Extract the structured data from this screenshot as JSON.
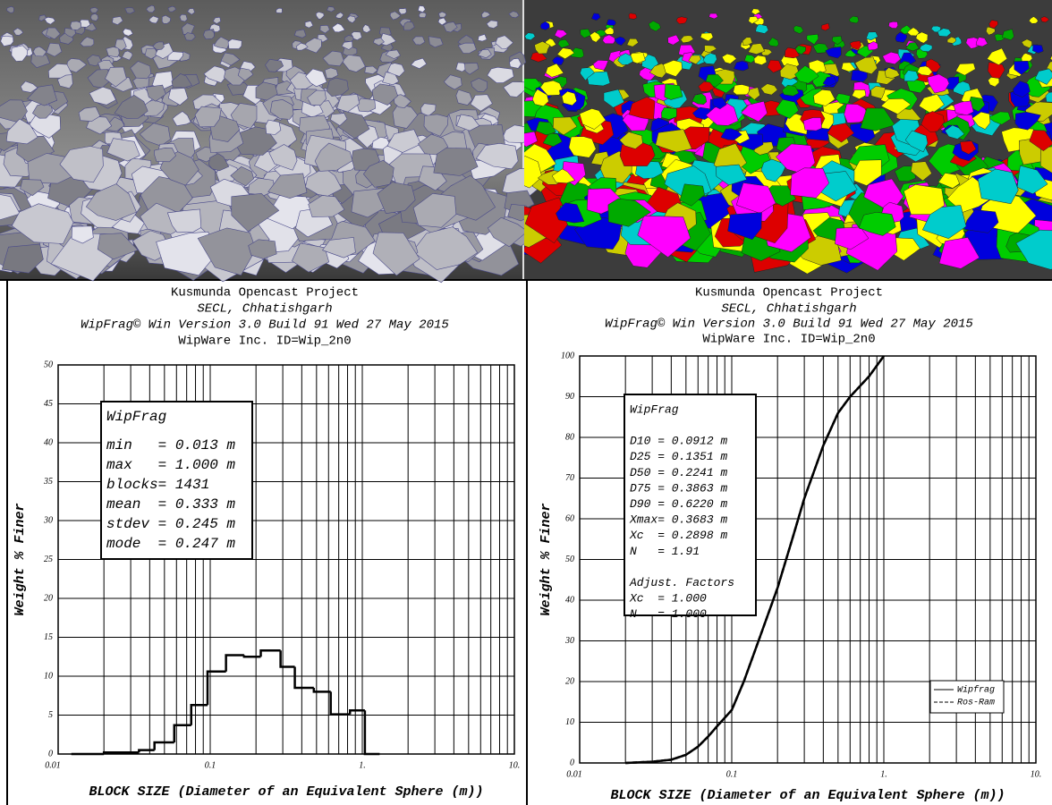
{
  "chart_data": [
    {
      "type": "histogram",
      "title": [
        "Kusmunda Opencast Project",
        "SECL, Chhatishgarh",
        "WipFrag© Win Version 3.0 Build 91 Wed 27 May 2015",
        "WipWare Inc.  ID=Wip_2n0"
      ],
      "stats_box": [
        "WipFrag",
        "min   = 0.013 m",
        "max   = 1.000 m",
        "blocks= 1431",
        "mean  = 0.333 m",
        "stdev = 0.245 m",
        "mode  = 0.247 m"
      ],
      "xlabel": "BLOCK SIZE (Diameter of an Equivalent Sphere (m))",
      "ylabel": "Weight % Finer",
      "bins": [
        0.0122,
        0.02,
        0.034,
        0.043,
        0.058,
        0.075,
        0.096,
        0.127,
        0.167,
        0.215,
        0.29,
        0.36,
        0.48,
        0.62,
        0.83,
        1.04,
        1.3
      ],
      "values": [
        0,
        0.2,
        0.5,
        1.5,
        3.7,
        6.3,
        10.6,
        12.7,
        12.5,
        13.3,
        11.2,
        8.5,
        8.0,
        5.1,
        5.6,
        0
      ],
      "color": "#000000",
      "xscale": "log",
      "xlim": [
        0.01,
        10
      ],
      "xticks": [
        0.01,
        0.1,
        {
          "value": 1,
          "label": "1."
        },
        {
          "value": 10,
          "label": "10."
        }
      ],
      "ylim": [
        0,
        50
      ],
      "yticks": [
        0,
        5,
        10,
        15,
        20,
        25,
        30,
        35,
        40,
        45,
        50
      ],
      "grid": true
    },
    {
      "type": "line",
      "title": [
        "Kusmunda Opencast Project",
        "SECL, Chhatishgarh",
        "WipFrag© Win Version 3.0 Build 91 Wed 27 May 2015",
        "WipWare Inc.  ID=Wip_2n0"
      ],
      "stats_box": [
        "WipFrag",
        "",
        "D10 = 0.0912 m",
        "D25 = 0.1351 m",
        "D50 = 0.2241 m",
        "D75 = 0.3863 m",
        "D90 = 0.6220 m",
        "Xmax= 0.3683 m",
        "Xc  = 0.2898 m",
        "N   = 1.91",
        "",
        "Adjust. Factors",
        "Xc  = 1.000",
        "N   = 1.000"
      ],
      "xlabel": "BLOCK SIZE (Diameter of an Equivalent Sphere (m))",
      "ylabel": "Weight % Finer",
      "x": [
        0.02,
        0.03,
        0.04,
        0.05,
        0.06,
        0.07,
        0.08,
        0.1,
        0.12,
        0.15,
        0.2,
        0.25,
        0.3,
        0.4,
        0.5,
        0.6,
        0.8,
        1.0
      ],
      "series": [
        {
          "name": "Wipfrag",
          "color": "#000000",
          "dash": "solid",
          "values": [
            0,
            0.3,
            0.8,
            2,
            4,
            6.5,
            9,
            13,
            20,
            30,
            43,
            55,
            65,
            78,
            86,
            90,
            95,
            100
          ]
        },
        {
          "name": "Ros-Ram",
          "color": "#000000",
          "dash": "dashed",
          "values": [
            0,
            0.3,
            0.8,
            2,
            4,
            6.5,
            9,
            13,
            20,
            30,
            43,
            55,
            65,
            78,
            86,
            90,
            95,
            100
          ]
        }
      ],
      "xscale": "log",
      "xlim": [
        0.01,
        10
      ],
      "xticks": [
        0.01,
        0.1,
        {
          "value": 1,
          "label": "1."
        },
        {
          "value": 10,
          "label": "10."
        }
      ],
      "ylim": [
        0,
        100
      ],
      "yticks": [
        0,
        10,
        20,
        30,
        40,
        50,
        60,
        70,
        80,
        90,
        100
      ],
      "grid": true,
      "legend": "lower right"
    }
  ]
}
